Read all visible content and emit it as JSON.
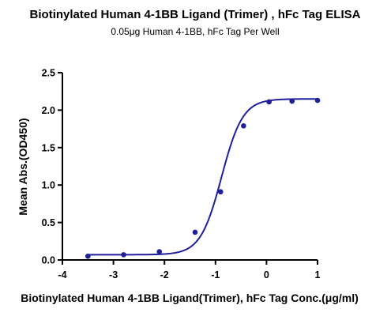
{
  "chart_data": {
    "type": "scatter",
    "title": "Biotinylated Human 4-1BB Ligand (Trimer) , hFc Tag ELISA",
    "subtitle": "0.05μg Human 4-1BB, hFc Tag Per Well",
    "xlabel": "Biotinylated Human 4-1BB Ligand(Trimer), hFc Tag Conc.(μg/ml)",
    "ylabel": "Mean Abs.(OD450)",
    "xlim": [
      -4,
      1
    ],
    "ylim": [
      0,
      2.5
    ],
    "x_ticks": [
      "-4",
      "-3",
      "-2",
      "-1",
      "0",
      "1"
    ],
    "y_ticks": [
      "0.0",
      "0.5",
      "1.0",
      "1.5",
      "2.0",
      "2.5"
    ],
    "grid": false,
    "colors": {
      "series": "#1f1f9a"
    },
    "series": [
      {
        "x": [
          -3.5,
          -2.8,
          -2.1,
          -1.4,
          -0.9,
          -0.45,
          0.05,
          0.5,
          1.0
        ],
        "y": [
          0.05,
          0.07,
          0.11,
          0.37,
          0.91,
          1.79,
          2.11,
          2.12,
          2.13
        ]
      }
    ],
    "fit_curve": {
      "model": "4PL",
      "bottom": 0.07,
      "top": 2.15,
      "log_ec50": -0.88,
      "hill_slope": 2.1
    }
  }
}
